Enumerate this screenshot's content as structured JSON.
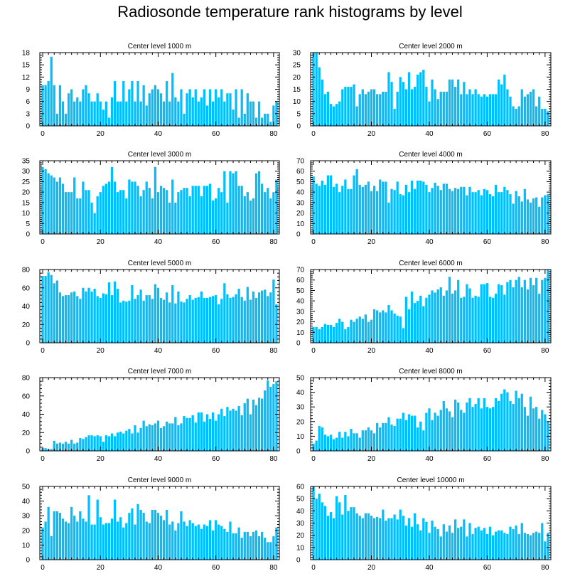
{
  "title": "Radiosonde temperature rank histograms by level",
  "colors": {
    "bar": "#00BFFF",
    "axis": "#000000",
    "background": "#FFFFFF"
  },
  "chart_data": [
    {
      "type": "bar",
      "title": "Center level 1000 m",
      "xlim": [
        -1,
        82
      ],
      "xticks": [
        0,
        20,
        40,
        60,
        80
      ],
      "ylim": [
        0,
        18
      ],
      "yticks": [
        0,
        3,
        6,
        9,
        12,
        15,
        18
      ],
      "ytick_side": "left",
      "values": [
        10,
        10,
        11,
        17,
        10,
        3,
        10,
        6,
        3,
        8,
        9,
        6,
        7,
        6,
        9,
        10,
        8,
        6,
        6,
        8,
        6,
        4,
        6,
        2,
        7,
        11,
        6,
        6,
        11,
        6,
        9,
        11,
        6,
        11,
        6,
        10,
        5,
        8,
        9,
        10,
        9,
        8,
        6,
        11,
        6,
        13,
        7,
        6,
        9,
        3,
        8,
        9,
        7,
        9,
        6,
        7,
        9,
        5,
        9,
        6,
        9,
        7,
        9,
        6,
        8,
        8,
        4,
        9,
        2,
        9,
        3,
        8,
        6,
        6,
        2,
        6,
        2,
        3,
        3,
        1,
        5,
        6
      ]
    },
    {
      "type": "bar",
      "title": "Center level 2000 m",
      "xlim": [
        -1,
        82
      ],
      "xticks": [
        0,
        20,
        40,
        60,
        80
      ],
      "ylim": [
        0,
        30
      ],
      "yticks": [
        0,
        5,
        10,
        15,
        20,
        25,
        30
      ],
      "ytick_side": "left",
      "values": [
        30,
        30,
        24,
        19,
        13,
        14,
        9,
        8,
        9,
        10,
        15,
        16,
        16,
        16,
        17,
        8,
        13,
        15,
        13,
        14,
        15,
        15,
        13,
        13,
        14,
        14,
        22,
        18,
        7,
        14,
        20,
        18,
        15,
        22,
        15,
        16,
        21,
        22,
        23,
        16,
        10,
        19,
        15,
        11,
        14,
        14,
        14,
        19,
        19,
        16,
        19,
        13,
        18,
        13,
        15,
        13,
        15,
        13,
        12,
        13,
        12,
        13,
        13,
        13,
        19,
        17,
        21,
        15,
        12,
        8,
        7,
        8,
        15,
        12,
        13,
        14,
        15,
        8,
        12,
        7,
        7,
        6
      ]
    },
    {
      "type": "bar",
      "title": "Center level 3000 m",
      "xlim": [
        -1,
        82
      ],
      "xticks": [
        0,
        20,
        40,
        60,
        80
      ],
      "ylim": [
        0,
        35
      ],
      "yticks": [
        0,
        5,
        10,
        15,
        20,
        25,
        30,
        35
      ],
      "ytick_side": "left",
      "values": [
        32,
        31,
        29,
        28,
        27,
        25,
        27,
        24,
        20,
        20,
        20,
        27,
        17,
        17,
        25,
        21,
        21,
        15,
        10,
        18,
        20,
        23,
        24,
        25,
        32,
        25,
        20,
        21,
        21,
        17,
        26,
        25,
        25,
        23,
        18,
        21,
        25,
        22,
        17,
        32,
        20,
        23,
        22,
        21,
        15,
        26,
        15,
        20,
        21,
        22,
        22,
        18,
        23,
        23,
        23,
        18,
        23,
        23,
        24,
        16,
        17,
        22,
        20,
        30,
        15,
        30,
        29,
        30,
        23,
        23,
        18,
        20,
        16,
        17,
        29,
        30,
        24,
        20,
        22,
        17,
        20,
        26
      ]
    },
    {
      "type": "bar",
      "title": "Center level 4000 m",
      "xlim": [
        -1,
        82
      ],
      "xticks": [
        0,
        20,
        40,
        60,
        80
      ],
      "ylim": [
        0,
        70
      ],
      "yticks": [
        0,
        10,
        20,
        30,
        40,
        50,
        60,
        70
      ],
      "ytick_side": "right",
      "values": [
        55,
        48,
        46,
        51,
        47,
        56,
        56,
        45,
        48,
        40,
        46,
        52,
        43,
        43,
        56,
        62,
        47,
        45,
        47,
        50,
        41,
        46,
        41,
        52,
        50,
        50,
        30,
        43,
        42,
        50,
        38,
        37,
        47,
        40,
        51,
        43,
        51,
        51,
        50,
        47,
        40,
        44,
        49,
        46,
        42,
        48,
        48,
        43,
        41,
        44,
        43,
        45,
        45,
        37,
        45,
        40,
        40,
        42,
        37,
        43,
        42,
        38,
        36,
        47,
        40,
        40,
        45,
        42,
        38,
        29,
        41,
        36,
        31,
        43,
        33,
        30,
        34,
        35,
        26,
        35,
        37,
        38
      ]
    },
    {
      "type": "bar",
      "title": "Center level 5000 m",
      "xlim": [
        -1,
        82
      ],
      "xticks": [
        0,
        20,
        40,
        60,
        80
      ],
      "ylim": [
        0,
        80
      ],
      "yticks": [
        0,
        20,
        40,
        60,
        80
      ],
      "ytick_side": "left",
      "values": [
        73,
        73,
        77,
        74,
        65,
        68,
        55,
        51,
        52,
        52,
        55,
        56,
        51,
        48,
        60,
        56,
        60,
        56,
        59,
        51,
        49,
        54,
        53,
        66,
        52,
        67,
        59,
        44,
        46,
        45,
        46,
        63,
        48,
        52,
        58,
        46,
        52,
        52,
        48,
        64,
        60,
        49,
        47,
        55,
        44,
        63,
        43,
        56,
        45,
        44,
        48,
        52,
        47,
        49,
        50,
        56,
        49,
        49,
        50,
        51,
        52,
        42,
        48,
        65,
        53,
        49,
        50,
        53,
        59,
        50,
        46,
        61,
        47,
        56,
        49,
        55,
        57,
        58,
        51,
        55,
        69,
        42
      ]
    },
    {
      "type": "bar",
      "title": "Center level 6000 m",
      "xlim": [
        -1,
        82
      ],
      "xticks": [
        0,
        20,
        40,
        60,
        80
      ],
      "ylim": [
        0,
        70
      ],
      "yticks": [
        0,
        10,
        20,
        30,
        40,
        50,
        60,
        70
      ],
      "ytick_side": "right",
      "values": [
        15,
        15,
        13,
        15,
        18,
        17,
        17,
        15,
        19,
        23,
        20,
        13,
        15,
        22,
        20,
        23,
        25,
        23,
        27,
        20,
        22,
        32,
        31,
        29,
        31,
        29,
        36,
        31,
        28,
        26,
        25,
        14,
        44,
        32,
        49,
        38,
        40,
        45,
        35,
        43,
        46,
        50,
        48,
        51,
        53,
        45,
        50,
        63,
        47,
        50,
        60,
        43,
        44,
        56,
        52,
        43,
        45,
        44,
        56,
        56,
        57,
        44,
        43,
        47,
        56,
        55,
        46,
        58,
        60,
        53,
        60,
        63,
        53,
        60,
        51,
        62,
        55,
        62,
        47,
        60,
        62,
        70
      ]
    },
    {
      "type": "bar",
      "title": "Center level 7000 m",
      "xlim": [
        -1,
        82
      ],
      "xticks": [
        0,
        20,
        40,
        60,
        80
      ],
      "ylim": [
        0,
        80
      ],
      "yticks": [
        0,
        20,
        40,
        60,
        80
      ],
      "ytick_side": "left",
      "values": [
        3,
        3,
        2,
        2,
        11,
        8,
        9,
        8,
        10,
        8,
        12,
        8,
        9,
        14,
        13,
        15,
        17,
        17,
        16,
        17,
        16,
        10,
        17,
        16,
        19,
        16,
        20,
        21,
        19,
        22,
        24,
        19,
        28,
        20,
        25,
        33,
        27,
        29,
        28,
        30,
        33,
        25,
        27,
        32,
        30,
        30,
        37,
        28,
        30,
        38,
        36,
        36,
        39,
        31,
        42,
        42,
        32,
        40,
        35,
        42,
        33,
        40,
        46,
        38,
        48,
        44,
        46,
        44,
        49,
        39,
        52,
        57,
        40,
        56,
        50,
        58,
        57,
        66,
        77,
        70,
        73,
        76
      ]
    },
    {
      "type": "bar",
      "title": "Center level 8000 m",
      "xlim": [
        -1,
        82
      ],
      "xticks": [
        0,
        20,
        40,
        60,
        80
      ],
      "ylim": [
        0,
        50
      ],
      "yticks": [
        0,
        10,
        20,
        30,
        40,
        50
      ],
      "ytick_side": "right",
      "values": [
        5,
        7,
        17,
        16,
        11,
        10,
        11,
        8,
        9,
        13,
        9,
        13,
        10,
        15,
        12,
        12,
        9,
        14,
        14,
        16,
        14,
        12,
        19,
        16,
        19,
        19,
        23,
        18,
        17,
        22,
        22,
        26,
        21,
        25,
        24,
        24,
        16,
        20,
        14,
        26,
        29,
        21,
        26,
        24,
        28,
        34,
        29,
        27,
        23,
        35,
        33,
        28,
        26,
        33,
        36,
        30,
        32,
        36,
        29,
        36,
        30,
        29,
        30,
        36,
        34,
        39,
        42,
        40,
        34,
        32,
        41,
        36,
        39,
        30,
        24,
        37,
        29,
        30,
        22,
        28,
        25,
        20
      ]
    },
    {
      "type": "bar",
      "title": "Center level 9000 m",
      "xlim": [
        -1,
        82
      ],
      "xticks": [
        0,
        20,
        40,
        60,
        80
      ],
      "ylim": [
        0,
        50
      ],
      "yticks": [
        0,
        10,
        20,
        30,
        40,
        50
      ],
      "ytick_side": "left",
      "values": [
        22,
        26,
        36,
        16,
        33,
        33,
        32,
        28,
        26,
        25,
        36,
        30,
        26,
        33,
        28,
        26,
        44,
        24,
        24,
        41,
        29,
        24,
        25,
        25,
        28,
        41,
        26,
        29,
        22,
        25,
        32,
        35,
        24,
        38,
        34,
        32,
        26,
        25,
        34,
        34,
        32,
        30,
        27,
        34,
        24,
        26,
        20,
        25,
        33,
        26,
        23,
        27,
        25,
        23,
        24,
        21,
        24,
        23,
        27,
        20,
        27,
        24,
        23,
        21,
        19,
        26,
        18,
        18,
        22,
        15,
        19,
        19,
        16,
        19,
        20,
        16,
        19,
        15,
        12,
        12,
        16,
        22
      ]
    },
    {
      "type": "bar",
      "title": "Center level 10000 m",
      "xlim": [
        -1,
        82
      ],
      "xticks": [
        0,
        20,
        40,
        60,
        80
      ],
      "ylim": [
        0,
        60
      ],
      "yticks": [
        0,
        10,
        20,
        30,
        40,
        50,
        60
      ],
      "ytick_side": "right",
      "values": [
        60,
        50,
        54,
        47,
        44,
        36,
        39,
        34,
        52,
        47,
        37,
        53,
        40,
        43,
        43,
        38,
        36,
        34,
        38,
        38,
        36,
        34,
        35,
        34,
        41,
        32,
        34,
        34,
        37,
        33,
        41,
        36,
        28,
        34,
        27,
        38,
        29,
        24,
        34,
        31,
        22,
        32,
        27,
        25,
        19,
        29,
        23,
        28,
        22,
        33,
        26,
        27,
        33,
        19,
        30,
        21,
        26,
        27,
        24,
        26,
        21,
        27,
        20,
        23,
        24,
        24,
        22,
        21,
        27,
        25,
        28,
        21,
        30,
        22,
        21,
        20,
        22,
        23,
        22,
        30,
        15,
        22
      ]
    }
  ]
}
